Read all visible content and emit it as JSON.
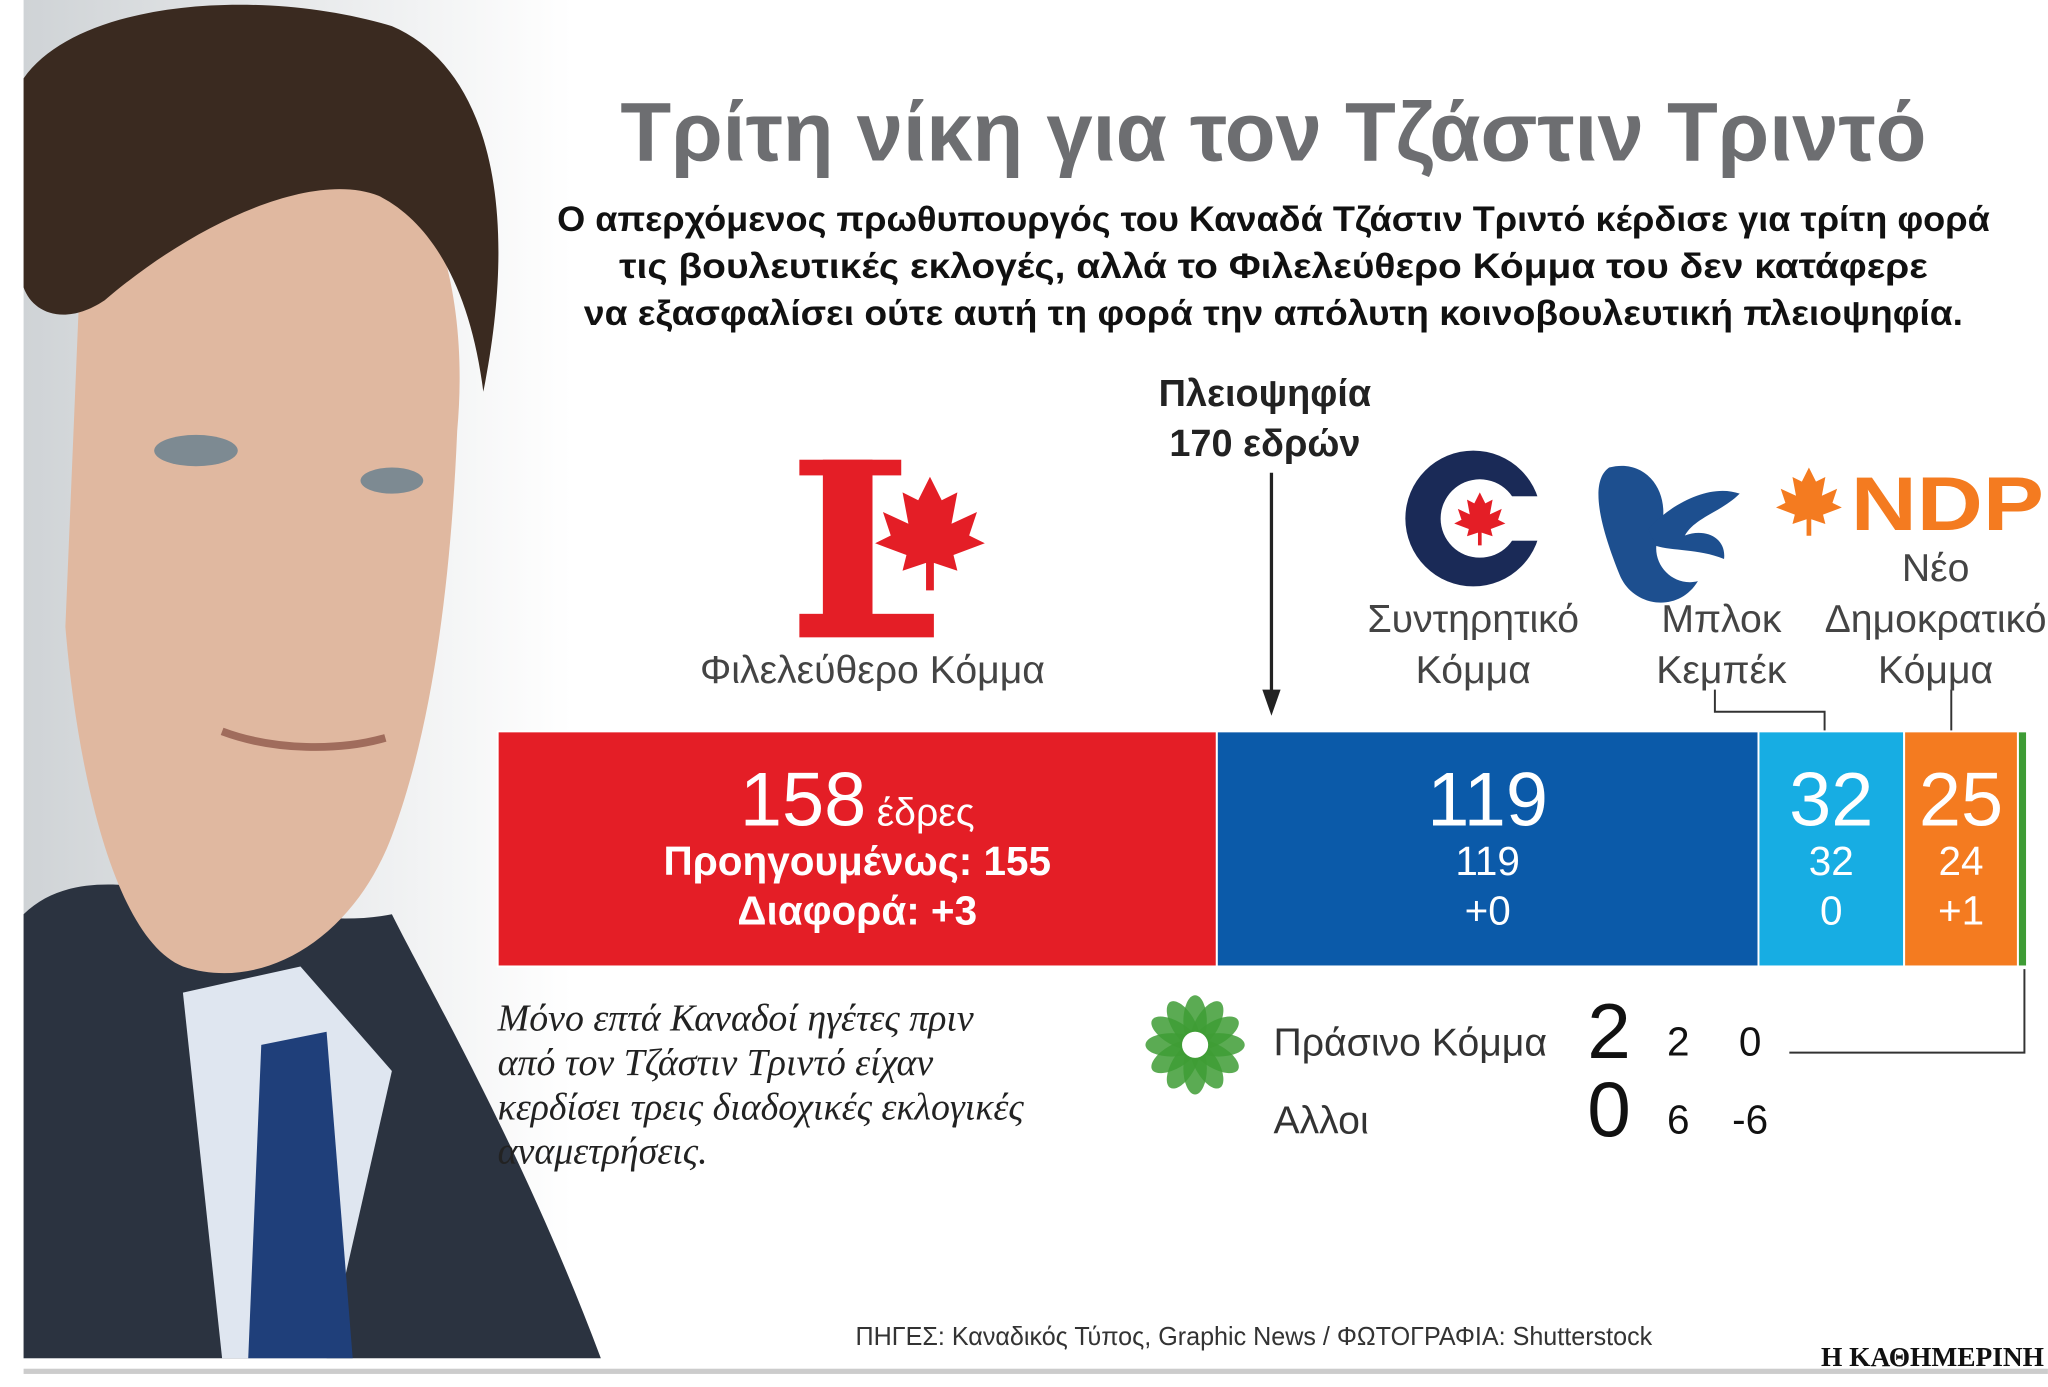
{
  "chart_data": {
    "type": "stacked-bar",
    "title": "Τρίτη νίκη για τον Τζάστιν Τριντό",
    "subtitle_lines": [
      "Ο απερχόμενος πρωθυπουργός του Καναδά Τζάστιν Τριντό κέρδισε για τρίτη φορά",
      "τις βουλευτικές εκλογές, αλλά το Φιλελεύθερο Κόμμα του δεν κατάφερε",
      "να εξασφαλίσει ούτε αυτή τη φορά την απόλυτη κοινοβουλευτική πλειοψηφία."
    ],
    "majority": {
      "label": "Πλειοψηφία",
      "seats_label": "170 εδρών",
      "seats": 170
    },
    "seats_unit": "έδρες",
    "previous_label": "Προηγουμένως:",
    "change_label": "Διαφορά:",
    "series": [
      {
        "name": "Φιλελεύθερο Κόμμα",
        "color": "#e41e26",
        "values": [
          158
        ],
        "previous": [
          155
        ],
        "change": [
          3
        ],
        "change_labels": [
          "+3"
        ]
      },
      {
        "name": "Συντηρητικό Κόμμα",
        "color": "#0b5aa9",
        "values": [
          119
        ],
        "previous": [
          119
        ],
        "change": [
          0
        ],
        "change_labels": [
          "+0"
        ]
      },
      {
        "name": "Μπλοκ Κεμπέκ",
        "color": "#17ade3",
        "values": [
          32
        ],
        "previous": [
          32
        ],
        "change": [
          0
        ],
        "change_labels": [
          "0"
        ]
      },
      {
        "name": "Νέο Δημοκρατικό Κόμμα",
        "color": "#f47b20",
        "values": [
          25
        ],
        "previous": [
          24
        ],
        "change": [
          1
        ],
        "change_labels": [
          "+1"
        ],
        "logo_text": "NDP"
      },
      {
        "name": "Πράσινο Κόμμα",
        "color": "#3e9c35",
        "values": [
          2
        ],
        "previous": [
          2
        ],
        "change": [
          0
        ],
        "change_labels": [
          "0"
        ]
      },
      {
        "name": "Αλλοι",
        "values": [
          0
        ],
        "previous": [
          6
        ],
        "change": [
          -6
        ],
        "change_labels": [
          "-6"
        ]
      }
    ]
  },
  "note_lines": [
    "Μόνο επτά Καναδοί ηγέτες πριν",
    "από τον Τζάστιν Τριντό είχαν",
    "κερδίσει τρεις διαδοχικές εκλογικές",
    "αναμετρήσεις."
  ],
  "source": "ΠΗΓΕΣ: Καναδικός Τύπος, Graphic News / ΦΩΤΟΓΡΑΦΙΑ: Shutterstock",
  "brand": "Η ΚΑΘΗΜΕΡΙΝΗ"
}
